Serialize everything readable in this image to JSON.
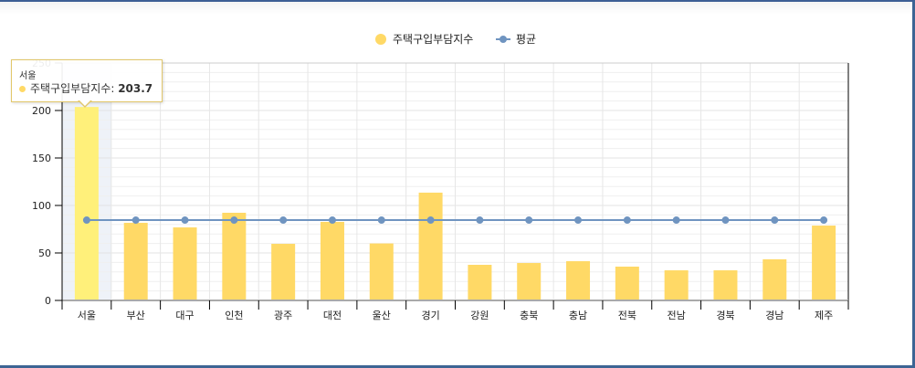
{
  "chart_data": {
    "type": "bar",
    "title": "",
    "xlabel": "",
    "ylabel": "",
    "ylim": [
      0,
      250
    ],
    "yticks": [
      0,
      50,
      100,
      150,
      200,
      250
    ],
    "grid": true,
    "legend_position": "top",
    "categories": [
      "서울",
      "부산",
      "대구",
      "인천",
      "광주",
      "대전",
      "울산",
      "경기",
      "강원",
      "충북",
      "충남",
      "전북",
      "전남",
      "경북",
      "경남",
      "제주"
    ],
    "series": [
      {
        "name": "주택구입부담지수",
        "type": "bar",
        "color": "#ffd966",
        "highlight_color": "#fff07a",
        "values": [
          203.7,
          81.7,
          76.9,
          92.3,
          59.6,
          82.7,
          60.0,
          113.5,
          37.5,
          39.4,
          41.3,
          35.6,
          31.7,
          31.7,
          43.3,
          78.8
        ]
      },
      {
        "name": "평균",
        "type": "line",
        "color": "#6f94c0",
        "values": [
          84.6,
          84.6,
          84.6,
          84.6,
          84.6,
          84.6,
          84.6,
          84.6,
          84.6,
          84.6,
          84.6,
          84.6,
          84.6,
          84.6,
          84.6,
          84.6
        ]
      }
    ]
  },
  "legend": {
    "items": [
      {
        "label": "주택구입부담지수",
        "color": "#ffd966"
      },
      {
        "label": "평균",
        "color": "#6f94c0"
      }
    ]
  },
  "tooltip": {
    "category": "서울",
    "series_label": "주택구입부담지수: ",
    "value": "203.7"
  }
}
